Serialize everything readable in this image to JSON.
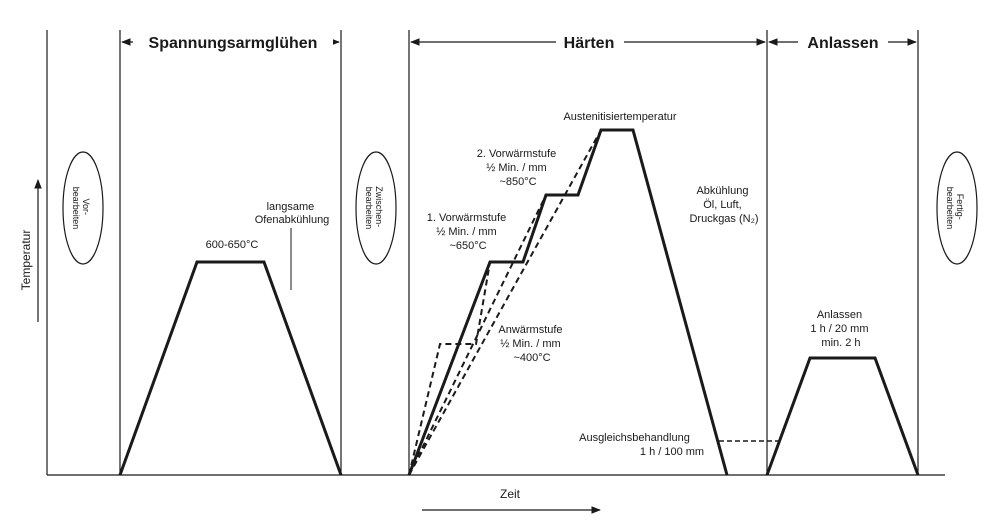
{
  "sections": {
    "stress_relief": "Spannungsarmglühen",
    "hardening": "Härten",
    "tempering": "Anlassen"
  },
  "axes": {
    "y_label": "Temperatur",
    "x_label": "Zeit"
  },
  "machining_steps": {
    "pre": [
      "Vor-",
      "bearbeiten"
    ],
    "intermediate": [
      "Zwischen-",
      "bearbeiten"
    ],
    "finish": [
      "Fertig-",
      "bearbeiten"
    ]
  },
  "stress_relief": {
    "temperature": "600-650°C",
    "cooling": [
      "langsame",
      "Ofenabkühlung"
    ]
  },
  "hardening": {
    "austenitizing": "Austenitisiertemperatur",
    "preheat_2": [
      "2. Vorwärmstufe",
      "½ Min. / mm",
      "~850°C"
    ],
    "preheat_1": [
      "1. Vorwärmstufe",
      "½ Min. / mm",
      "~650°C"
    ],
    "warmup": [
      "Anwärmstufe",
      "½ Min. / mm",
      "~400°C"
    ],
    "cooling": [
      "Abkühlung",
      "Öl, Luft,",
      "Druckgas (N₂)"
    ],
    "equalizing": [
      "Ausgleichsbehandlung",
      "1 h / 100 mm"
    ]
  },
  "tempering": {
    "label": [
      "Anlassen",
      "1 h / 20 mm",
      "min. 2 h"
    ]
  }
}
